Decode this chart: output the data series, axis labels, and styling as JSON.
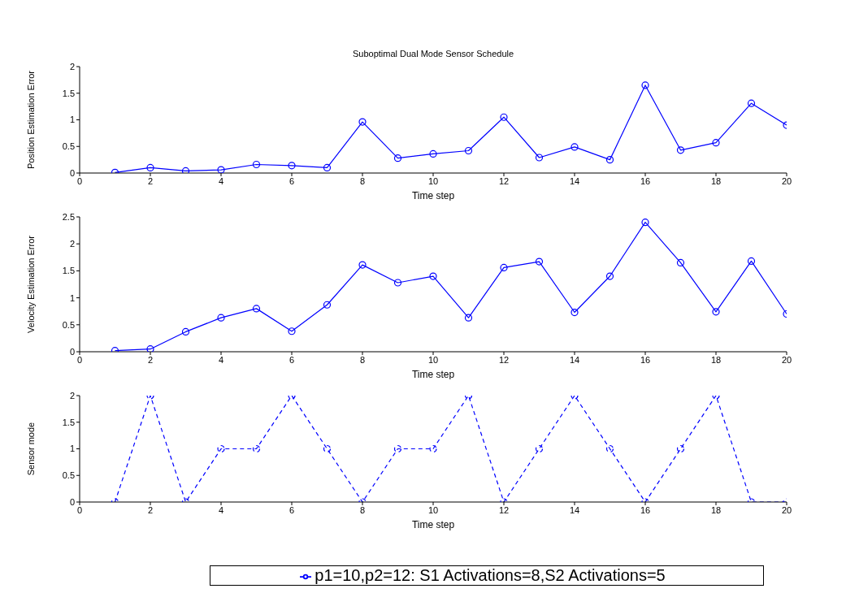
{
  "chart_data": [
    {
      "type": "line",
      "title": "Suboptimal Dual Mode Sensor Schedule",
      "xlabel": "Time step",
      "ylabel": "Position Estimation Error",
      "x": [
        1,
        2,
        3,
        4,
        5,
        6,
        7,
        8,
        9,
        10,
        11,
        12,
        13,
        14,
        15,
        16,
        17,
        18,
        19,
        20
      ],
      "xlim": [
        0,
        20
      ],
      "xticks": [
        0,
        2,
        4,
        6,
        8,
        10,
        12,
        14,
        16,
        18,
        20
      ],
      "ylim": [
        0,
        2
      ],
      "yticks": [
        0,
        0.5,
        1,
        1.5,
        2
      ],
      "grid": false,
      "marker": "circle",
      "line_style": "solid",
      "series": [
        {
          "color": "#0000ff",
          "values": [
            0.01,
            0.1,
            0.04,
            0.06,
            0.16,
            0.14,
            0.1,
            0.96,
            0.28,
            0.36,
            0.42,
            1.05,
            0.29,
            0.49,
            0.25,
            1.65,
            0.43,
            0.57,
            1.31,
            0.9
          ]
        }
      ]
    },
    {
      "type": "line",
      "xlabel": "Time step",
      "ylabel": "Velocity Estimation Error",
      "x": [
        1,
        2,
        3,
        4,
        5,
        6,
        7,
        8,
        9,
        10,
        11,
        12,
        13,
        14,
        15,
        16,
        17,
        18,
        19,
        20
      ],
      "xlim": [
        0,
        20
      ],
      "xticks": [
        0,
        2,
        4,
        6,
        8,
        10,
        12,
        14,
        16,
        18,
        20
      ],
      "ylim": [
        0,
        2.5
      ],
      "yticks": [
        0,
        0.5,
        1,
        1.5,
        2,
        2.5
      ],
      "grid": false,
      "marker": "circle",
      "line_style": "solid",
      "series": [
        {
          "color": "#0000ff",
          "values": [
            0.02,
            0.05,
            0.37,
            0.63,
            0.8,
            0.38,
            0.87,
            1.61,
            1.28,
            1.4,
            0.63,
            1.56,
            1.67,
            0.73,
            1.4,
            2.4,
            1.65,
            0.74,
            1.68,
            0.7
          ]
        }
      ]
    },
    {
      "type": "line",
      "xlabel": "Time step",
      "ylabel": "Sensor mode",
      "x": [
        1,
        2,
        3,
        4,
        5,
        6,
        7,
        8,
        9,
        10,
        11,
        12,
        13,
        14,
        15,
        16,
        17,
        18,
        19,
        20
      ],
      "xlim": [
        0,
        20
      ],
      "xticks": [
        0,
        2,
        4,
        6,
        8,
        10,
        12,
        14,
        16,
        18,
        20
      ],
      "ylim": [
        0,
        2
      ],
      "yticks": [
        0,
        0.5,
        1,
        1.5,
        2
      ],
      "grid": false,
      "marker": "circle",
      "line_style": "dashed",
      "legend": "bottom",
      "series": [
        {
          "name": "p1=10,p2=12: S1 Activations=8,S2 Activations=5",
          "color": "#0000ff",
          "values": [
            0,
            2,
            0,
            1,
            1,
            2,
            1,
            0,
            1,
            1,
            2,
            0,
            1,
            2,
            1,
            0,
            1,
            2,
            0,
            0
          ]
        }
      ]
    }
  ]
}
